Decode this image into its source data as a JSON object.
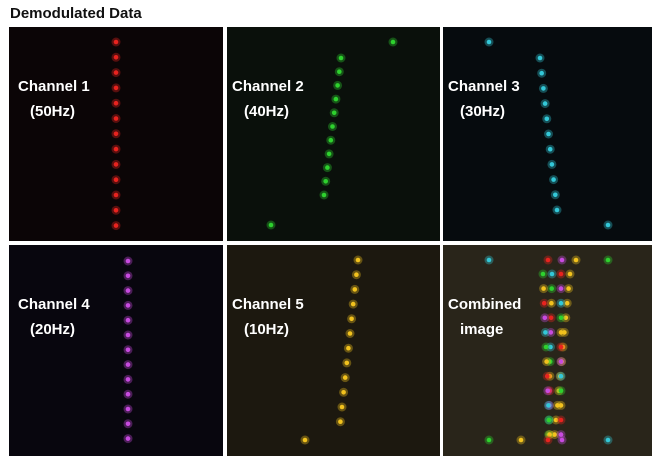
{
  "title": "Demodulated Data",
  "panels": [
    {
      "lines": [
        "Channel 1",
        "(50Hz)"
      ]
    },
    {
      "lines": [
        "Channel 2",
        "(40Hz)"
      ]
    },
    {
      "lines": [
        "Channel 3",
        "(30Hz)"
      ]
    },
    {
      "lines": [
        "Channel 4",
        "(20Hz)"
      ]
    },
    {
      "lines": [
        "Channel 5",
        "(10Hz)"
      ]
    },
    {
      "lines": [
        "Combined",
        "image"
      ]
    }
  ]
}
